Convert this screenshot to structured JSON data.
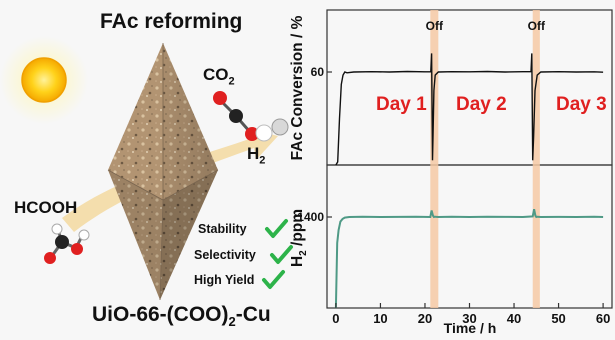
{
  "illustration": {
    "title": "FAc reforming",
    "co2_label": "CO",
    "co2_sub": "2",
    "h2_label": "H",
    "h2_sub": "2",
    "hcooh_label": "HCOOH",
    "features": [
      "Stability",
      "Selectivity",
      "High Yield"
    ],
    "material_prefix": "UiO-66-(COO)",
    "material_sub": "2",
    "material_suffix": "-Cu",
    "colors": {
      "sun": "#f5b800",
      "check": "#2db34a",
      "arrow": "#f3d9a0",
      "oxygen": "#e02020",
      "carbon": "#222222"
    }
  },
  "chart_data": [
    {
      "type": "line",
      "ylabel": "FAc Conversion / %",
      "yticks": [
        60
      ],
      "xlim": [
        -2,
        62
      ],
      "ylim": [
        0,
        100
      ],
      "series": [
        {
          "x": [
            0,
            0.4,
            0.8,
            1.2,
            1.6,
            2.0,
            2.5,
            4,
            8,
            12,
            16,
            20,
            21.3,
            21.5,
            21.7,
            21.8,
            22.0,
            22.3,
            23,
            26,
            30,
            34,
            38,
            42,
            43.8,
            44.0,
            44.2,
            44.4,
            44.7,
            45.2,
            46,
            50,
            54,
            58,
            60
          ],
          "values": [
            0,
            2,
            30,
            52,
            58,
            60,
            59.5,
            60,
            60.2,
            60,
            60.3,
            60.1,
            60.2,
            72,
            3,
            18,
            48,
            58,
            60,
            60.2,
            60.1,
            60.3,
            60,
            60.2,
            60.2,
            72,
            3,
            18,
            48,
            58,
            60,
            60.2,
            60,
            60.1,
            59.9
          ]
        }
      ],
      "annotations": [
        "Day 1",
        "Day 2",
        "Day 3",
        "Off",
        "Off"
      ],
      "off_bands": [
        [
          21.2,
          23.0
        ],
        [
          44.2,
          45.8
        ]
      ],
      "line_color": "#111111",
      "annotation_color": "#e02020",
      "band_color": "#f6c9a4"
    },
    {
      "type": "line",
      "ylabel_prefix": "H",
      "ylabel_sub": "2",
      "ylabel_suffix": " /ppm",
      "yticks": [
        1400
      ],
      "xlim": [
        -2,
        62
      ],
      "ylim": [
        0,
        2200
      ],
      "xticks": [
        0,
        10,
        20,
        30,
        40,
        50,
        60
      ],
      "xlabel": "Time / h",
      "series": [
        {
          "x": [
            0,
            0.3,
            0.6,
            1.0,
            1.5,
            2.0,
            3,
            6,
            10,
            14,
            18,
            21.2,
            21.5,
            21.8,
            22.0,
            22.3,
            23,
            26,
            30,
            34,
            38,
            42,
            44.2,
            44.5,
            44.8,
            45.0,
            45.3,
            46,
            50,
            54,
            58,
            60
          ],
          "values": [
            0,
            1000,
            1200,
            1330,
            1370,
            1390,
            1400,
            1405,
            1400,
            1402,
            1405,
            1400,
            1500,
            1420,
            1400,
            1405,
            1400,
            1403,
            1400,
            1405,
            1402,
            1400,
            1410,
            1520,
            1420,
            1400,
            1405,
            1400,
            1402,
            1400,
            1403,
            1400
          ]
        }
      ],
      "line_color": "#4f9a86"
    }
  ]
}
